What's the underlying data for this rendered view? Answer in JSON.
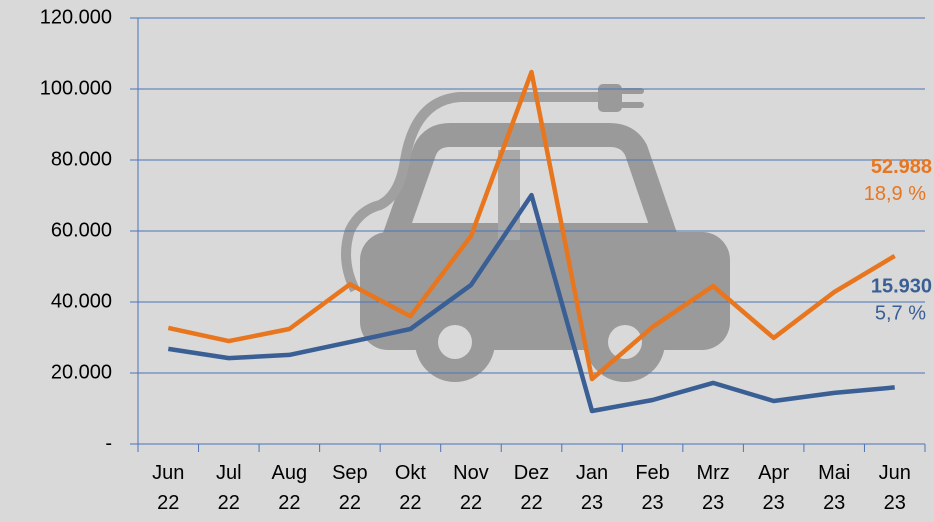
{
  "chart_data": {
    "type": "line",
    "categories": [
      "Jun 22",
      "Jul 22",
      "Aug 22",
      "Sep 22",
      "Okt 22",
      "Nov 22",
      "Dez 22",
      "Jan 23",
      "Feb 23",
      "Mrz 23",
      "Apr 23",
      "Mai 23",
      "Jun 23"
    ],
    "series": [
      {
        "color": "#e8761f",
        "values": [
          32700,
          29000,
          32400,
          45000,
          36000,
          58600,
          104800,
          18300,
          33000,
          44500,
          29900,
          42800,
          52988
        ],
        "value_labels": [
          null,
          null,
          null,
          null,
          null,
          null,
          null,
          null,
          null,
          null,
          null,
          null,
          "52.988"
        ],
        "share": "18,9 %"
      },
      {
        "color": "#3a5f94",
        "values": [
          26800,
          24200,
          25100,
          28700,
          32400,
          44800,
          70100,
          9300,
          12400,
          17200,
          12100,
          14400,
          15930
        ],
        "value_labels": [
          null,
          null,
          null,
          null,
          null,
          null,
          null,
          null,
          null,
          null,
          null,
          null,
          "15.930"
        ],
        "share": "5,7 %"
      }
    ],
    "ylim": [
      0,
      120000
    ],
    "yticks": [
      {
        "value": 0,
        "label": "-"
      },
      {
        "value": 20000,
        "label": "20.000"
      },
      {
        "value": 40000,
        "label": "40.000"
      },
      {
        "value": 60000,
        "label": "60.000"
      },
      {
        "value": 80000,
        "label": "80.000"
      },
      {
        "value": 100000,
        "label": "100.000"
      },
      {
        "value": 120000,
        "label": "120.000"
      }
    ],
    "grid": true
  }
}
